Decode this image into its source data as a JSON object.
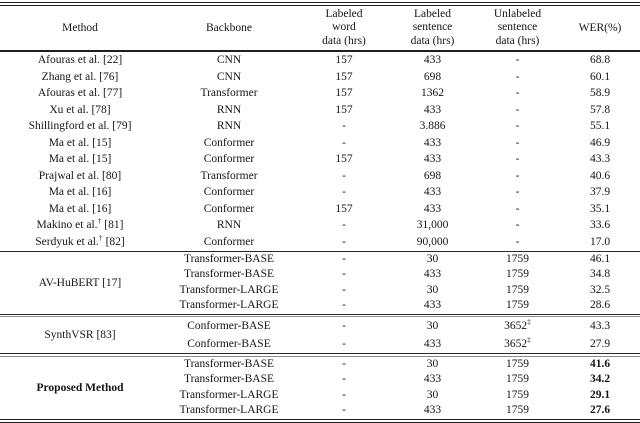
{
  "colors": {
    "background": "#ffffff",
    "text": "#151515",
    "rule": "#1f1f1f"
  },
  "table": {
    "header": {
      "method": "Method",
      "backbone": "Backbone",
      "labeled_word": [
        "Labeled",
        "word",
        "data (hrs)"
      ],
      "labeled_sentence": [
        "Labeled",
        "sentence",
        "data (hrs)"
      ],
      "unlabeled_sentence": [
        "Unlabeled",
        "sentence",
        "data (hrs)"
      ],
      "wer": "WER(%)"
    },
    "sections": [
      {
        "name": "prior-work",
        "rows": [
          {
            "method": "Afouras et al. [22]",
            "method_sup": "",
            "method_ref": "",
            "backbone": "CNN",
            "word": "157",
            "sentence": "433",
            "unlabeled": "-",
            "unlabeled_sup": "",
            "wer": "68.8"
          },
          {
            "method": "Zhang et al. [76]",
            "method_sup": "",
            "method_ref": "",
            "backbone": "CNN",
            "word": "157",
            "sentence": "698",
            "unlabeled": "-",
            "unlabeled_sup": "",
            "wer": "60.1"
          },
          {
            "method": "Afouras et al. [77]",
            "method_sup": "",
            "method_ref": "",
            "backbone": "Transformer",
            "word": "157",
            "sentence": "1362",
            "unlabeled": "-",
            "unlabeled_sup": "",
            "wer": "58.9"
          },
          {
            "method": "Xu et al. [78]",
            "method_sup": "",
            "method_ref": "",
            "backbone": "RNN",
            "word": "157",
            "sentence": "433",
            "unlabeled": "-",
            "unlabeled_sup": "",
            "wer": "57.8"
          },
          {
            "method": "Shillingford et al. [79]",
            "method_sup": "",
            "method_ref": "",
            "backbone": "RNN",
            "word": "-",
            "sentence": "3.886",
            "unlabeled": "-",
            "unlabeled_sup": "",
            "wer": "55.1"
          },
          {
            "method": "Ma et al. [15]",
            "method_sup": "",
            "method_ref": "",
            "backbone": "Conformer",
            "word": "-",
            "sentence": "433",
            "unlabeled": "-",
            "unlabeled_sup": "",
            "wer": "46.9"
          },
          {
            "method": "Ma et al. [15]",
            "method_sup": "",
            "method_ref": "",
            "backbone": "Conformer",
            "word": "157",
            "sentence": "433",
            "unlabeled": "-",
            "unlabeled_sup": "",
            "wer": "43.3"
          },
          {
            "method": "Prajwal et al. [80]",
            "method_sup": "",
            "method_ref": "",
            "backbone": "Transformer",
            "word": "-",
            "sentence": "698",
            "unlabeled": "-",
            "unlabeled_sup": "",
            "wer": "40.6"
          },
          {
            "method": "Ma et al. [16]",
            "method_sup": "",
            "method_ref": "",
            "backbone": "Conformer",
            "word": "-",
            "sentence": "433",
            "unlabeled": "-",
            "unlabeled_sup": "",
            "wer": "37.9"
          },
          {
            "method": "Ma et al. [16]",
            "method_sup": "",
            "method_ref": "",
            "backbone": "Conformer",
            "word": "157",
            "sentence": "433",
            "unlabeled": "-",
            "unlabeled_sup": "",
            "wer": "35.1"
          },
          {
            "method": "Makino et al.",
            "method_sup": "†",
            "method_ref": "[81]",
            "backbone": "RNN",
            "word": "-",
            "sentence": "31,000",
            "unlabeled": "-",
            "unlabeled_sup": "",
            "wer": "33.6"
          },
          {
            "method": "Serdyuk et al.",
            "method_sup": "†",
            "method_ref": "[82]",
            "backbone": "Conformer",
            "word": "-",
            "sentence": "90,000",
            "unlabeled": "-",
            "unlabeled_sup": "",
            "wer": "17.0"
          }
        ]
      },
      {
        "name": "av-hubert",
        "method": "AV-HuBERT [17]",
        "rows": [
          {
            "backbone": "Transformer-BASE",
            "word": "-",
            "sentence": "30",
            "unlabeled": "1759",
            "unlabeled_sup": "",
            "wer": "46.1"
          },
          {
            "backbone": "Transformer-BASE",
            "word": "-",
            "sentence": "433",
            "unlabeled": "1759",
            "unlabeled_sup": "",
            "wer": "34.8"
          },
          {
            "backbone": "Transformer-LARGE",
            "word": "-",
            "sentence": "30",
            "unlabeled": "1759",
            "unlabeled_sup": "",
            "wer": "32.5"
          },
          {
            "backbone": "Transformer-LARGE",
            "word": "-",
            "sentence": "433",
            "unlabeled": "1759",
            "unlabeled_sup": "",
            "wer": "28.6"
          }
        ]
      },
      {
        "name": "synthvsr",
        "method": "SynthVSR [83]",
        "rows": [
          {
            "backbone": "Conformer-BASE",
            "word": "-",
            "sentence": "30",
            "unlabeled": "3652",
            "unlabeled_sup": "‡",
            "wer": "43.3"
          },
          {
            "backbone": "Conformer-BASE",
            "word": "-",
            "sentence": "433",
            "unlabeled": "3652",
            "unlabeled_sup": "‡",
            "wer": "27.9"
          }
        ]
      },
      {
        "name": "proposed-method",
        "method": "Proposed Method",
        "rows": [
          {
            "backbone": "Transformer-BASE",
            "word": "-",
            "sentence": "30",
            "unlabeled": "1759",
            "unlabeled_sup": "",
            "wer": "41.6"
          },
          {
            "backbone": "Transformer-BASE",
            "word": "-",
            "sentence": "433",
            "unlabeled": "1759",
            "unlabeled_sup": "",
            "wer": "34.2"
          },
          {
            "backbone": "Transformer-LARGE",
            "word": "-",
            "sentence": "30",
            "unlabeled": "1759",
            "unlabeled_sup": "",
            "wer": "29.1"
          },
          {
            "backbone": "Transformer-LARGE",
            "word": "-",
            "sentence": "433",
            "unlabeled": "1759",
            "unlabeled_sup": "",
            "wer": "27.6"
          }
        ]
      }
    ]
  }
}
